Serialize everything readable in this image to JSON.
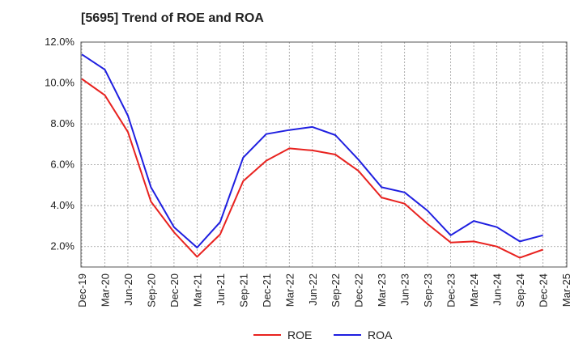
{
  "chart_data": {
    "type": "line",
    "title": "[5695]  Trend of ROE and ROA",
    "x_categories": [
      "Dec-19",
      "Mar-20",
      "Jun-20",
      "Sep-20",
      "Dec-20",
      "Mar-21",
      "Jun-21",
      "Sep-21",
      "Dec-21",
      "Mar-22",
      "Jun-22",
      "Sep-22",
      "Dec-22",
      "Mar-23",
      "Jun-23",
      "Sep-23",
      "Dec-23",
      "Mar-24",
      "Jun-24",
      "Sep-24",
      "Dec-24",
      "Mar-25"
    ],
    "y_ticks": [
      "2.0%",
      "4.0%",
      "6.0%",
      "8.0%",
      "10.0%",
      "12.0%"
    ],
    "ylim": [
      1.0,
      12.0
    ],
    "grid": true,
    "legend_position": "bottom",
    "series": [
      {
        "name": "ROE",
        "color": "#e8221f",
        "values": [
          10.2,
          9.4,
          7.6,
          4.2,
          2.7,
          1.5,
          2.6,
          5.2,
          6.2,
          6.8,
          6.7,
          6.5,
          5.7,
          4.4,
          4.1,
          3.1,
          2.2,
          2.25,
          2.0,
          1.45,
          1.85,
          null
        ]
      },
      {
        "name": "ROA",
        "color": "#1f1fe0",
        "values": [
          11.4,
          10.65,
          8.4,
          4.9,
          2.95,
          1.95,
          3.2,
          6.35,
          7.5,
          7.7,
          7.85,
          7.45,
          6.25,
          4.9,
          4.65,
          3.75,
          2.55,
          3.25,
          2.95,
          2.25,
          2.55,
          null
        ]
      }
    ]
  }
}
